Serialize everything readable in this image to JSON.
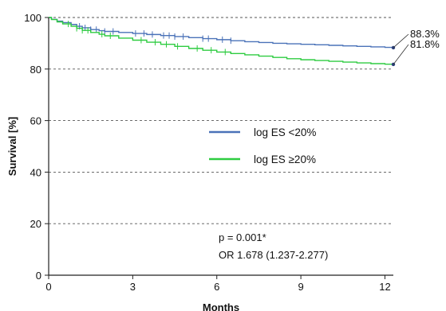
{
  "chart_data": {
    "type": "line",
    "xlabel": "Months",
    "ylabel": "Survival [%]",
    "xlim": [
      0,
      12.3
    ],
    "ylim": [
      0,
      100
    ],
    "xticks": [
      0,
      3,
      6,
      9,
      12
    ],
    "yticks": [
      0,
      20,
      40,
      60,
      80,
      100
    ],
    "grid": "horizontal dashed",
    "legend_position": "center-right",
    "series": [
      {
        "name": "log ES <20%",
        "color": "#4a72b8",
        "end_label": "88.3%",
        "x": [
          0,
          0.1,
          0.3,
          0.5,
          0.8,
          1.0,
          1.2,
          1.5,
          1.8,
          2.0,
          2.5,
          3.0,
          3.5,
          4.0,
          4.5,
          5.0,
          5.5,
          6.0,
          6.5,
          7.0,
          7.5,
          8.0,
          8.5,
          9.0,
          9.5,
          10.0,
          10.5,
          11.0,
          11.5,
          12.0,
          12.3
        ],
        "y": [
          100,
          99.3,
          98.6,
          98.0,
          97.3,
          96.6,
          96.0,
          95.3,
          94.9,
          94.6,
          94.2,
          93.8,
          93.4,
          93.0,
          92.6,
          92.2,
          91.8,
          91.4,
          91.0,
          90.6,
          90.3,
          90.0,
          89.8,
          89.6,
          89.4,
          89.2,
          89.0,
          88.8,
          88.6,
          88.4,
          88.3
        ],
        "censor_x": [
          1.1,
          1.3,
          1.5,
          1.7,
          2.0,
          2.3,
          3.1,
          3.4,
          3.7,
          4.1,
          4.3,
          4.5,
          4.8,
          5.5,
          5.7,
          6.2,
          6.5
        ]
      },
      {
        "name": "log ES ≥20%",
        "color": "#2ecc40",
        "end_label": "81.8%",
        "x": [
          0,
          0.1,
          0.3,
          0.5,
          0.8,
          1.0,
          1.2,
          1.5,
          1.8,
          2.0,
          2.5,
          3.0,
          3.5,
          4.0,
          4.5,
          5.0,
          5.5,
          6.0,
          6.5,
          7.0,
          7.5,
          8.0,
          8.5,
          9.0,
          9.5,
          10.0,
          10.5,
          11.0,
          11.5,
          12.0,
          12.3
        ],
        "y": [
          100,
          99.2,
          98.3,
          97.5,
          96.6,
          95.8,
          95.0,
          94.2,
          93.5,
          92.9,
          92.0,
          91.2,
          90.4,
          89.6,
          88.8,
          88.0,
          87.3,
          86.6,
          86.0,
          85.5,
          85.0,
          84.5,
          84.0,
          83.6,
          83.3,
          83.0,
          82.7,
          82.4,
          82.1,
          81.9,
          81.8
        ],
        "censor_x": [
          0.7,
          1.0,
          1.2,
          1.4,
          1.9,
          2.2,
          3.3,
          3.8,
          4.2,
          4.6,
          5.3,
          5.8,
          6.3
        ]
      }
    ],
    "annotations": {
      "p_value": "p = 0.001*",
      "odds_ratio": "OR 1.678 (1.237-2.277)"
    }
  }
}
